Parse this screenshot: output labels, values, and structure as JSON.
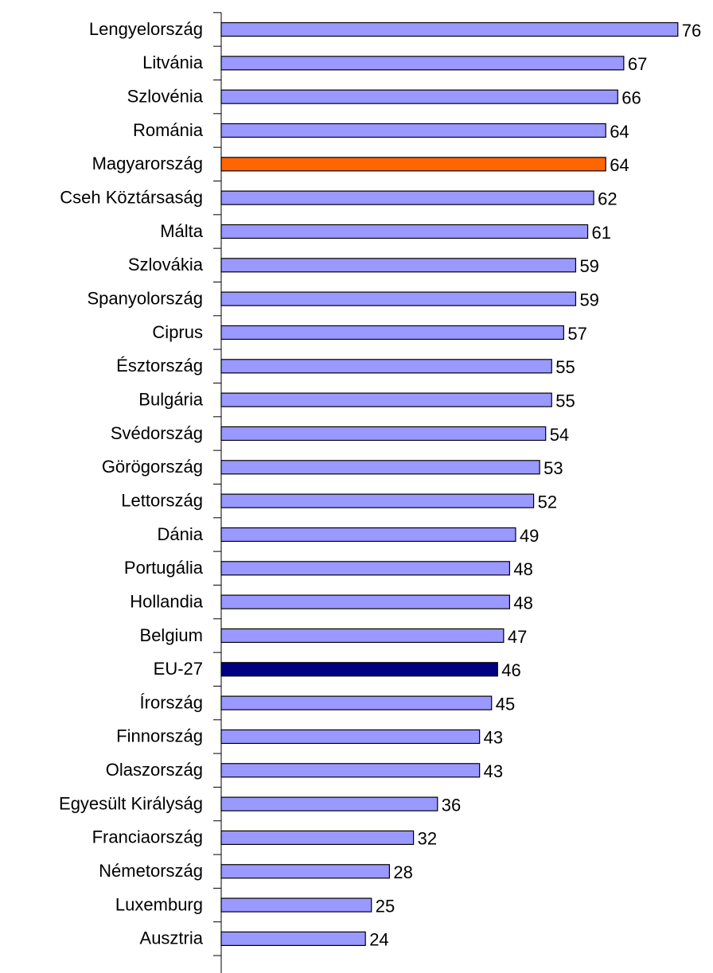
{
  "chart_data": {
    "type": "bar",
    "orientation": "horizontal",
    "categories": [
      "Lengyelország",
      "Litvánia",
      "Szlovénia",
      "Románia",
      "Magyarország",
      "Cseh Köztársaság",
      "Málta",
      "Szlovákia",
      "Spanyolország",
      "Ciprus",
      "Észtország",
      "Bulgária",
      "Svédország",
      "Görögország",
      "Lettország",
      "Dánia",
      "Portugália",
      "Hollandia",
      "Belgium",
      "EU-27",
      "Írország",
      "Finnország",
      "Olaszország",
      "Egyesült Királyság",
      "Franciaország",
      "Németország",
      "Luxemburg",
      "Ausztria"
    ],
    "values": [
      76,
      67,
      66,
      64,
      64,
      62,
      61,
      59,
      59,
      57,
      55,
      55,
      54,
      53,
      52,
      49,
      48,
      48,
      47,
      46,
      45,
      43,
      43,
      36,
      32,
      28,
      25,
      24
    ],
    "colors": [
      "#9999ff",
      "#9999ff",
      "#9999ff",
      "#9999ff",
      "#ff6600",
      "#9999ff",
      "#9999ff",
      "#9999ff",
      "#9999ff",
      "#9999ff",
      "#9999ff",
      "#9999ff",
      "#9999ff",
      "#9999ff",
      "#9999ff",
      "#9999ff",
      "#9999ff",
      "#9999ff",
      "#9999ff",
      "#000080",
      "#9999ff",
      "#9999ff",
      "#9999ff",
      "#9999ff",
      "#9999ff",
      "#9999ff",
      "#9999ff",
      "#9999ff"
    ]
  }
}
